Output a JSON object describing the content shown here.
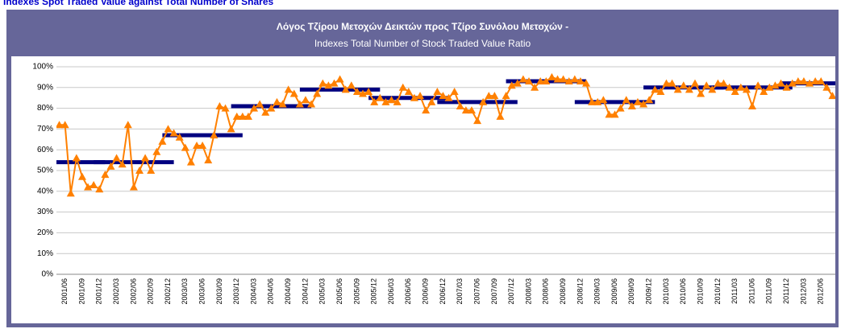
{
  "page_title": "Indexes Spot Traded Value against Total Number of Shares",
  "chart_data": {
    "type": "line",
    "title": "Λόγος Τζίρου Μετοχών Δεικτών προς Τζίρο Συνόλου Μετοχών -",
    "subtitle": "Indexes Total Number of Stock Traded Value Ratio",
    "categories": [
      null,
      "2001/06",
      null,
      null,
      "2001/09",
      null,
      null,
      "2001/12",
      null,
      null,
      "2002/03",
      null,
      null,
      "2002/06",
      null,
      null,
      "2002/09",
      null,
      null,
      "2002/12",
      null,
      null,
      "2003/03",
      null,
      null,
      "2003/06",
      null,
      null,
      "2003/09",
      null,
      null,
      "2003/12",
      null,
      null,
      "2004/03",
      null,
      null,
      "2004/06",
      null,
      null,
      "2004/09",
      null,
      null,
      "2004/12",
      null,
      null,
      "2005/03",
      null,
      null,
      "2005/06",
      null,
      null,
      "2005/09",
      null,
      null,
      "2005/12",
      null,
      null,
      "2006/03",
      null,
      null,
      "2006/06",
      null,
      null,
      "2006/09",
      null,
      null,
      "2006/12",
      null,
      null,
      "2007/03",
      null,
      null,
      "2007/06",
      null,
      null,
      "2007/09",
      null,
      null,
      "2007/12",
      null,
      null,
      "2008/03",
      null,
      null,
      "2008/06",
      null,
      null,
      "2008/09",
      null,
      null,
      "2008/12",
      null,
      null,
      "2009/03",
      null,
      null,
      "2009/06",
      null,
      null,
      "2009/09",
      null,
      null,
      "2009/12",
      null,
      null,
      "2010/03",
      null,
      null,
      "2010/06",
      null,
      null,
      "2010/09",
      null,
      null,
      "2010/12",
      null,
      null,
      "2011/03",
      null,
      null,
      "2011/06",
      null,
      null,
      "2011/09",
      null,
      null,
      "2011/12",
      null,
      null,
      "2012/03",
      null,
      null,
      "2012/06",
      null,
      null
    ],
    "series": [
      {
        "type": "line",
        "color": "#ff8000",
        "values": [
          72,
          72,
          39,
          56,
          47,
          42,
          43,
          41,
          48,
          52,
          56,
          53,
          72,
          42,
          50,
          56,
          50,
          59,
          64,
          70,
          68,
          66,
          61,
          54,
          62,
          62,
          55,
          67,
          81,
          80,
          70,
          76,
          76,
          76,
          80,
          82,
          78,
          80,
          83,
          82,
          89,
          87,
          82,
          84,
          82,
          87,
          92,
          91,
          92,
          94,
          89,
          91,
          88,
          87,
          88,
          83,
          85,
          83,
          84,
          83,
          90,
          88,
          85,
          86,
          79,
          83,
          88,
          86,
          85,
          88,
          81,
          79,
          79,
          74,
          83,
          86,
          86,
          76,
          86,
          91,
          92,
          94,
          93,
          90,
          93,
          93,
          95,
          94,
          94,
          93,
          94,
          93,
          92,
          83,
          83,
          84,
          77,
          77,
          80,
          84,
          81,
          83,
          82,
          84,
          89,
          88,
          92,
          92,
          89,
          91,
          89,
          92,
          87,
          91,
          89,
          92,
          92,
          90,
          88,
          90,
          89,
          81,
          91,
          88,
          90,
          91,
          92,
          90,
          92,
          93,
          93,
          92,
          93,
          93,
          90,
          86
        ]
      },
      {
        "type": "bar",
        "color": "#000080",
        "values": [
          null,
          54,
          null,
          null,
          null,
          null,
          null,
          null,
          null,
          null,
          null,
          null,
          null,
          54,
          null,
          null,
          null,
          null,
          null,
          null,
          null,
          null,
          null,
          null,
          null,
          67,
          null,
          null,
          null,
          null,
          null,
          null,
          null,
          null,
          null,
          null,
          null,
          81,
          null,
          null,
          null,
          null,
          null,
          null,
          null,
          null,
          null,
          null,
          null,
          89,
          null,
          null,
          null,
          null,
          null,
          null,
          null,
          null,
          null,
          null,
          null,
          85,
          null,
          null,
          null,
          null,
          null,
          null,
          null,
          null,
          null,
          null,
          null,
          83,
          null,
          null,
          null,
          null,
          null,
          null,
          null,
          null,
          null,
          null,
          null,
          93,
          null,
          null,
          null,
          null,
          null,
          null,
          null,
          null,
          null,
          null,
          null,
          83,
          null,
          null,
          null,
          null,
          null,
          null,
          null,
          null,
          null,
          null,
          null,
          90,
          null,
          null,
          null,
          null,
          null,
          null,
          null,
          null,
          null,
          null,
          null,
          90,
          null,
          null,
          null,
          null,
          null,
          null,
          null,
          null,
          null,
          null,
          null,
          92,
          null,
          null
        ]
      }
    ],
    "ylim": [
      0,
      100
    ],
    "yticks": [
      {
        "value": 0,
        "label": "0%"
      },
      {
        "value": 10,
        "label": "10%"
      },
      {
        "value": 20,
        "label": "20%"
      },
      {
        "value": 30,
        "label": "30%"
      },
      {
        "value": 40,
        "label": "40%"
      },
      {
        "value": 50,
        "label": "50%"
      },
      {
        "value": 60,
        "label": "60%"
      },
      {
        "value": 70,
        "label": "70%"
      },
      {
        "value": 80,
        "label": "80%"
      },
      {
        "value": 90,
        "label": "90%"
      },
      {
        "value": 100,
        "label": "100%"
      }
    ],
    "grid": true
  }
}
